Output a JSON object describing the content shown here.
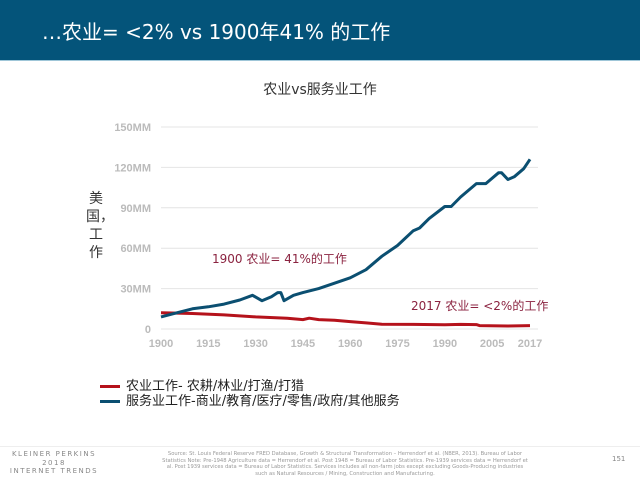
{
  "slide": {
    "title": "…农业= <2% vs 1900年41% 的工作",
    "page": "151",
    "footer_brand": [
      "KLEINER PERKINS",
      "2018",
      "INTERNET TRENDS"
    ],
    "source": "Source: St. Louis Federal Reserve FRED Database, Growth & Structural Transformation – Herrendorf et al. (NBER, 2013). Bureau of Labor Statistics Note: Pre-1948 Agriculture data = Herrendorf et al. Post 1948 = Bureau of Labor Statistics. Pre-1939 services data = Herrendorf et al. Post 1939 services data = Bureau of Labor Statistics.  Services includes all non-farm jobs except excluding Goods-Producing industries such as Natural Resources / Mining, Construction and Manufacturing."
  },
  "chart_data": {
    "type": "line",
    "title": "农业vs服务业工作",
    "ylabel": "美国，工作",
    "xlabel": "",
    "xlim": [
      1900,
      2017
    ],
    "ylim": [
      0,
      150
    ],
    "grid": true,
    "legend_position": "bottom-left",
    "x_ticks": [
      "1900",
      "1915",
      "1930",
      "1945",
      "1960",
      "1975",
      "1990",
      "2005",
      "2017"
    ],
    "y_ticks": [
      "0",
      "30MM",
      "60MM",
      "90MM",
      "120MM",
      "150MM"
    ],
    "annotations": [
      "1900  农业= 41%的工作",
      "2017  农业= <2%的工作"
    ],
    "series": [
      {
        "name": "农业工作- 农耕/林业/打渔/打猎",
        "color": "#b5121b",
        "x": [
          1900,
          1910,
          1920,
          1930,
          1940,
          1945,
          1947,
          1950,
          1955,
          1960,
          1965,
          1970,
          1980,
          1990,
          1995,
          2000,
          2001,
          2010,
          2017
        ],
        "y": [
          12,
          11.5,
          10.5,
          9,
          8,
          7,
          8,
          7,
          6.5,
          5.5,
          4.5,
          3.5,
          3.4,
          3.2,
          3.4,
          3.3,
          2.5,
          2.2,
          2.5
        ]
      },
      {
        "name": "服务业工作-商业/教育/医疗/零售/政府/其他服务",
        "color": "#0b4f71",
        "x": [
          1900,
          1905,
          1910,
          1915,
          1920,
          1925,
          1929,
          1932,
          1935,
          1937,
          1938,
          1939,
          1942,
          1945,
          1950,
          1955,
          1960,
          1965,
          1970,
          1975,
          1980,
          1982,
          1985,
          1990,
          1992,
          1995,
          2000,
          2003,
          2007,
          2008,
          2010,
          2012,
          2015,
          2017
        ],
        "y": [
          9,
          12,
          15,
          16.5,
          18.5,
          21.5,
          25,
          21,
          24,
          27,
          27,
          21,
          25,
          27,
          30,
          34,
          38,
          44,
          54,
          62,
          73,
          75,
          82,
          91,
          91,
          98,
          108,
          108,
          116,
          116,
          111,
          113,
          119,
          126
        ]
      }
    ]
  }
}
